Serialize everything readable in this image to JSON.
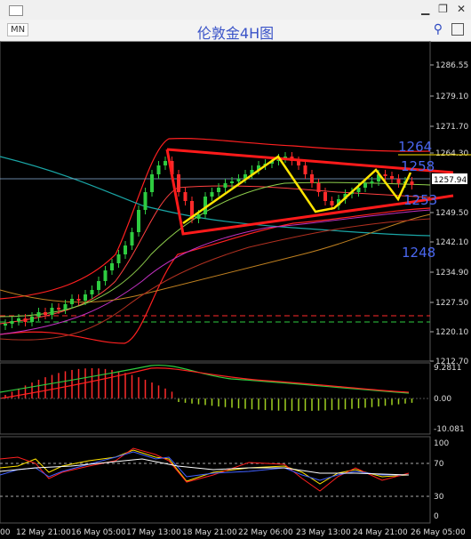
{
  "window": {
    "title": "伦敦金4H图",
    "timeframe_label": "MN"
  },
  "main_chart": {
    "price_ticks": [
      "1286.55",
      "1279.10",
      "1271.70",
      "1264.30",
      "1257.94",
      "1249.50",
      "1242.10",
      "1234.90",
      "1227.50",
      "1220.10",
      "1212.70"
    ],
    "current_price": "1257.94",
    "annotations": [
      "1264",
      "1258",
      "1253",
      "1248"
    ]
  },
  "macd": {
    "ticks": [
      "9.2811",
      "0.00",
      "-10.081"
    ]
  },
  "rsi": {
    "ticks": [
      "100",
      "70",
      "30",
      "0"
    ]
  },
  "time_axis": [
    "00",
    "12 May 21:00",
    "16 May 05:00",
    "17 May 13:00",
    "18 May 21:00",
    "22 May 06:00",
    "23 May 13:00",
    "24 May 21:00",
    "26 May 05:00"
  ],
  "colors": {
    "bull": "#2ecc40",
    "bear": "#ff2a2a",
    "fib": "#ffe400",
    "trend": "#ff1a1a",
    "text_blue": "#4a67f0",
    "bg": "#000000"
  }
}
